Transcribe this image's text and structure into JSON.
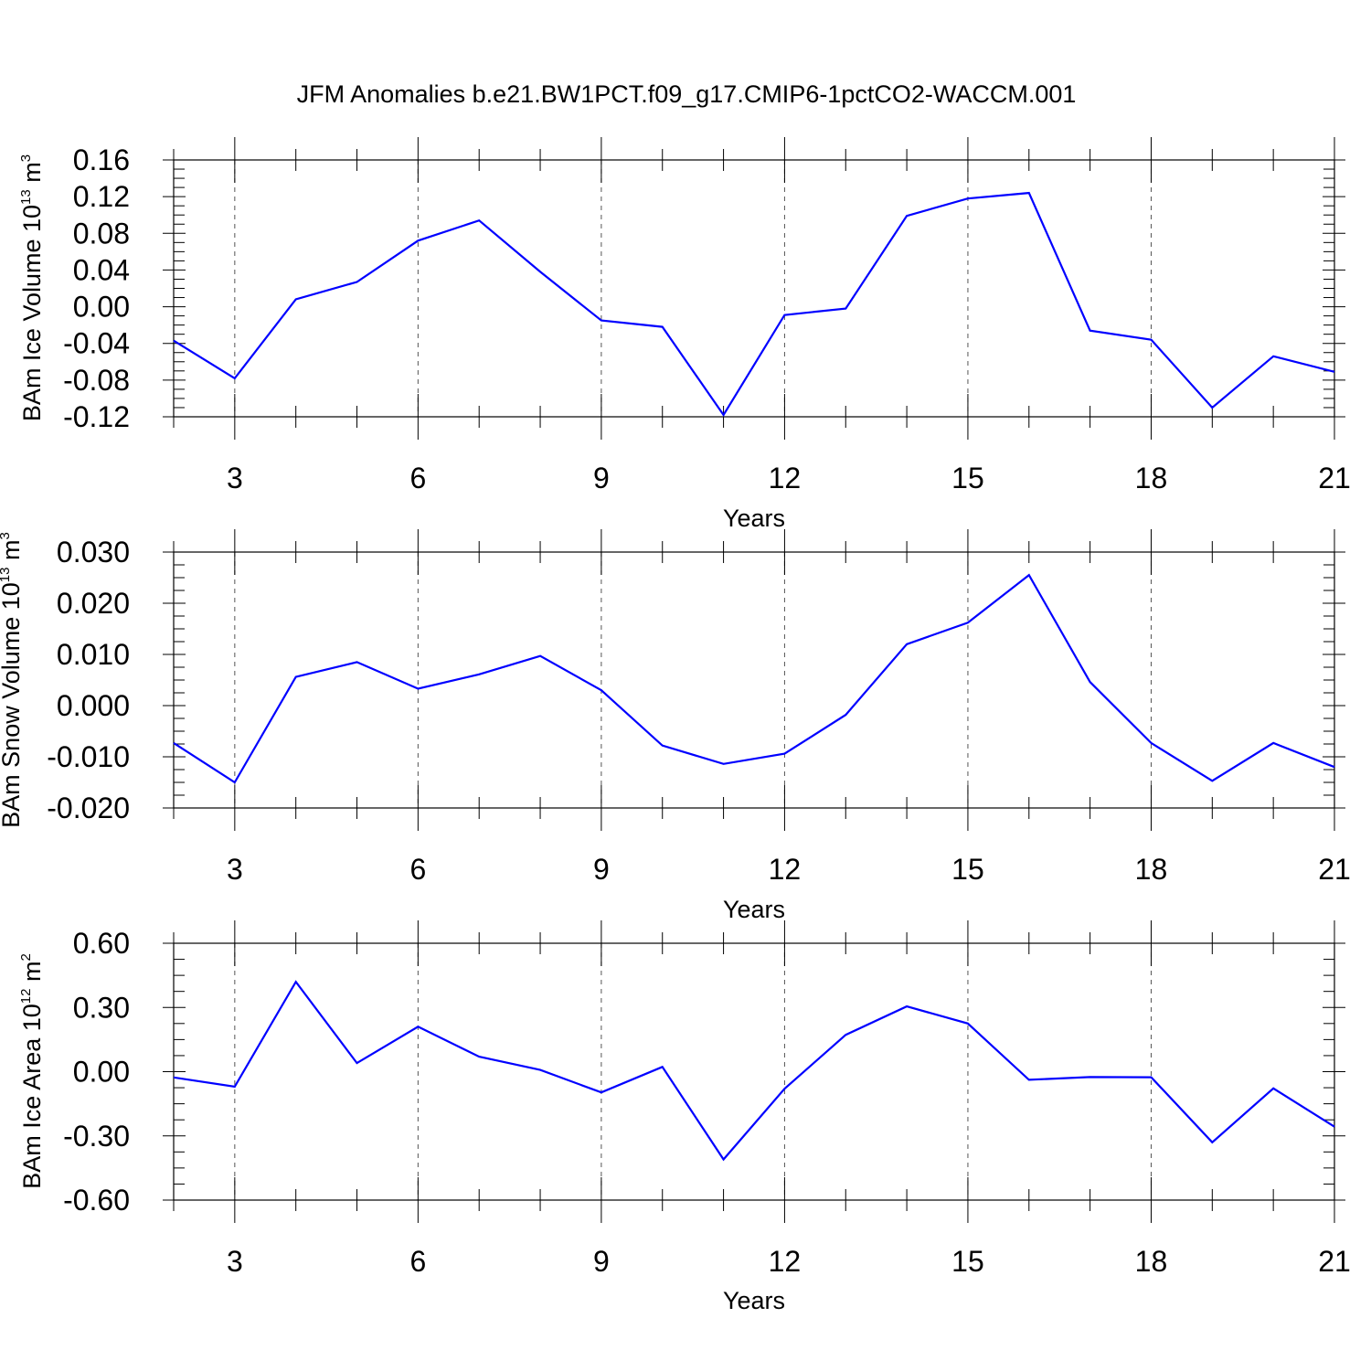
{
  "title": "JFM Anomalies b.e21.BW1PCT.f09_g17.CMIP6-1pctCO2-WACCM.001",
  "chart_data": [
    {
      "type": "line",
      "xlabel": "Years",
      "ylabel": {
        "text": "BAm Ice Volume 10",
        "exp": "13",
        "unit": " m",
        "unit_exp": "3"
      },
      "xlim": [
        2,
        21
      ],
      "ylim": [
        -0.12,
        0.16
      ],
      "x_ticks": [
        3,
        6,
        9,
        12,
        15,
        18,
        21
      ],
      "y_ticks": [
        "0.16",
        "0.12",
        "0.08",
        "0.04",
        "0.00",
        "-0.04",
        "-0.08",
        "-0.12"
      ],
      "y_tick_values": [
        0.16,
        0.12,
        0.08,
        0.04,
        0.0,
        -0.04,
        -0.08,
        -0.12
      ],
      "grid": "vertical dashed at major x ticks",
      "line_color": "#0000ff",
      "x": [
        2,
        3,
        4,
        5,
        6,
        7,
        8,
        9,
        10,
        11,
        12,
        13,
        14,
        15,
        16,
        17,
        18,
        19,
        20,
        21
      ],
      "values": [
        -0.037,
        -0.078,
        0.008,
        0.027,
        0.072,
        0.094,
        0.038,
        -0.015,
        -0.022,
        -0.118,
        -0.009,
        -0.002,
        0.099,
        0.118,
        0.124,
        -0.026,
        -0.036,
        -0.11,
        -0.054,
        -0.071
      ]
    },
    {
      "type": "line",
      "xlabel": "Years",
      "ylabel": {
        "text": "BAm Snow Volume 10",
        "exp": "13",
        "unit": " m",
        "unit_exp": "3"
      },
      "xlim": [
        2,
        21
      ],
      "ylim": [
        -0.02,
        0.03
      ],
      "x_ticks": [
        3,
        6,
        9,
        12,
        15,
        18,
        21
      ],
      "y_ticks": [
        "0.030",
        "0.020",
        "0.010",
        "0.000",
        "-0.010",
        "-0.020"
      ],
      "y_tick_values": [
        0.03,
        0.02,
        0.01,
        0.0,
        -0.01,
        -0.02
      ],
      "grid": "vertical dashed at major x ticks",
      "line_color": "#0000ff",
      "x": [
        2,
        3,
        4,
        5,
        6,
        7,
        8,
        9,
        10,
        11,
        12,
        13,
        14,
        15,
        16,
        17,
        18,
        19,
        20,
        21
      ],
      "values": [
        -0.0073,
        -0.015,
        0.0056,
        0.0085,
        0.0033,
        0.0061,
        0.0097,
        0.003,
        -0.0078,
        -0.0114,
        -0.0094,
        -0.0018,
        0.012,
        0.0162,
        0.0255,
        0.0046,
        -0.0073,
        -0.0147,
        -0.0073,
        -0.012
      ]
    },
    {
      "type": "line",
      "xlabel": "Years",
      "ylabel": {
        "text": "BAm Ice Area 10",
        "exp": "12",
        "unit": " m",
        "unit_exp": "2"
      },
      "xlim": [
        2,
        21
      ],
      "ylim": [
        -0.6,
        0.6
      ],
      "x_ticks": [
        3,
        6,
        9,
        12,
        15,
        18,
        21
      ],
      "y_ticks": [
        "0.60",
        "0.30",
        "0.00",
        "-0.30",
        "-0.60"
      ],
      "y_tick_values": [
        0.6,
        0.3,
        0.0,
        -0.3,
        -0.6
      ],
      "grid": "vertical dashed at major x ticks",
      "line_color": "#0000ff",
      "x": [
        2,
        3,
        4,
        5,
        6,
        7,
        8,
        9,
        10,
        11,
        12,
        13,
        14,
        15,
        16,
        17,
        18,
        19,
        20,
        21
      ],
      "values": [
        -0.027,
        -0.07,
        0.42,
        0.04,
        0.21,
        0.07,
        0.008,
        -0.097,
        0.022,
        -0.41,
        -0.08,
        0.172,
        0.305,
        0.225,
        -0.038,
        -0.025,
        -0.026,
        -0.33,
        -0.078,
        -0.257
      ]
    }
  ]
}
